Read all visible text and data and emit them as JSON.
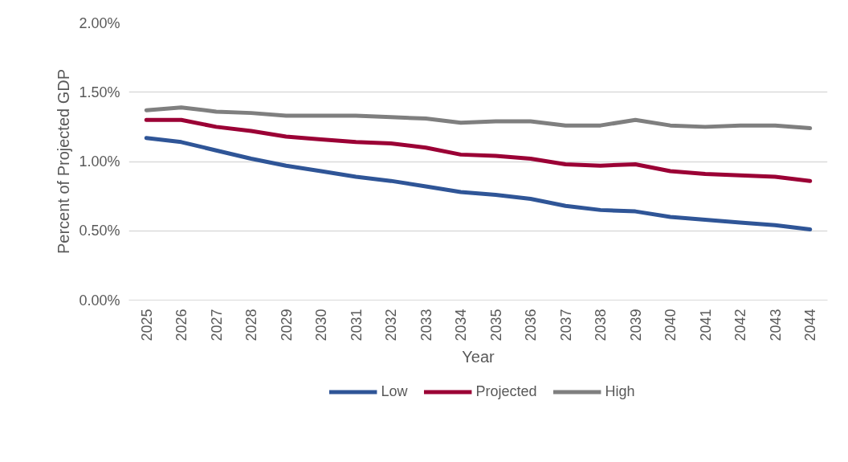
{
  "chart_data": {
    "type": "line",
    "xlabel": "Year",
    "ylabel": "Percent of Projected GDP",
    "categories": [
      "2025",
      "2026",
      "2027",
      "2028",
      "2029",
      "2030",
      "2031",
      "2032",
      "2033",
      "2034",
      "2035",
      "2036",
      "2037",
      "2038",
      "2039",
      "2040",
      "2041",
      "2042",
      "2043",
      "2044"
    ],
    "series": [
      {
        "name": "Low",
        "color": "#2f5597",
        "values": [
          1.17,
          1.14,
          1.08,
          1.02,
          0.97,
          0.93,
          0.89,
          0.86,
          0.82,
          0.78,
          0.76,
          0.73,
          0.68,
          0.65,
          0.64,
          0.6,
          0.58,
          0.56,
          0.54,
          0.51
        ]
      },
      {
        "name": "Projected",
        "color": "#9b0035",
        "values": [
          1.3,
          1.3,
          1.25,
          1.22,
          1.18,
          1.16,
          1.14,
          1.13,
          1.1,
          1.05,
          1.04,
          1.02,
          0.98,
          0.97,
          0.98,
          0.93,
          0.91,
          0.9,
          0.89,
          0.86
        ]
      },
      {
        "name": "High",
        "color": "#7f7f7f",
        "values": [
          1.37,
          1.39,
          1.36,
          1.35,
          1.33,
          1.33,
          1.33,
          1.32,
          1.31,
          1.28,
          1.29,
          1.29,
          1.26,
          1.26,
          1.3,
          1.26,
          1.25,
          1.26,
          1.26,
          1.24
        ]
      }
    ],
    "ylim": [
      0,
      2
    ],
    "yticks": [
      {
        "value": 0,
        "label": "0.00%"
      },
      {
        "value": 0.5,
        "label": "0.50%"
      },
      {
        "value": 1,
        "label": "1.00%"
      },
      {
        "value": 1.5,
        "label": "1.50%"
      },
      {
        "value": 2,
        "label": "2.00%"
      }
    ],
    "grid": "y",
    "legend": "bottom",
    "marker": "none",
    "line_style": "solid"
  }
}
